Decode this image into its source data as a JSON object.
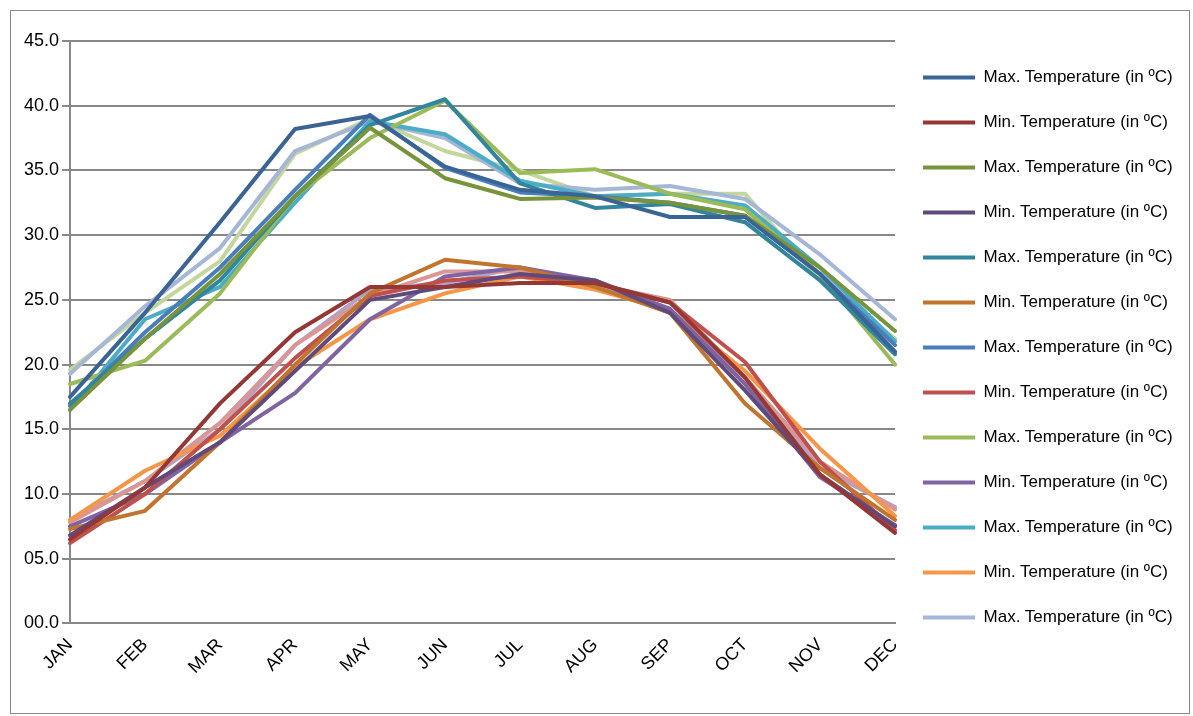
{
  "chart_data": {
    "type": "line",
    "categories": [
      "JAN",
      "FEB",
      "MAR",
      "APR",
      "MAY",
      "JUN",
      "JUL",
      "AUG",
      "SEP",
      "OCT",
      "NOV",
      "DEC"
    ],
    "ylim": [
      0,
      45
    ],
    "yticks": [
      {
        "value": 0,
        "label": "00.0"
      },
      {
        "value": 5,
        "label": "05.0"
      },
      {
        "value": 10,
        "label": "10.0"
      },
      {
        "value": 15,
        "label": "15.0"
      },
      {
        "value": 20,
        "label": "20.0"
      },
      {
        "value": 25,
        "label": "25.0"
      },
      {
        "value": 30,
        "label": "30.0"
      },
      {
        "value": 35,
        "label": "35.0"
      },
      {
        "value": 40,
        "label": "40.0"
      },
      {
        "value": 45,
        "label": "45.0"
      }
    ],
    "grid": "y",
    "legend": "right",
    "marker": "none",
    "line_style": "solid",
    "series": [
      {
        "name": "Max. Temperature (in ºC)",
        "color": "#3b6496",
        "values": [
          17.5,
          24,
          31,
          38.2,
          39.2,
          35.3,
          33.5,
          33,
          31.4,
          31.4,
          27,
          21
        ]
      },
      {
        "name": "Min. Temperature (in ºC)",
        "color": "#953735",
        "values": [
          6.5,
          10.5,
          17,
          22.5,
          26,
          26,
          26.3,
          26.3,
          24.8,
          19,
          11.5,
          7
        ]
      },
      {
        "name": "Max. Temperature (in ºC)",
        "color": "#77933c",
        "values": [
          16.5,
          22,
          27,
          33,
          38.3,
          34.4,
          32.8,
          32.9,
          32.5,
          31.5,
          27.5,
          22.6
        ]
      },
      {
        "name": "Min. Temperature (in ºC)",
        "color": "#604a7b",
        "values": [
          6.8,
          10.5,
          14,
          19.5,
          25,
          26,
          27,
          26.5,
          24,
          18,
          11.5,
          7.5
        ]
      },
      {
        "name": "Max. Temperature (in ºC)",
        "color": "#31859c",
        "values": [
          17,
          22,
          26.5,
          33,
          38.5,
          40.5,
          34,
          32.1,
          32.4,
          31,
          26.5,
          20.8
        ]
      },
      {
        "name": "Min. Temperature (in ºC)",
        "color": "#c0742e",
        "values": [
          7.3,
          8.7,
          14,
          20,
          25.5,
          28.1,
          27.5,
          26,
          24,
          17,
          12,
          8
        ]
      },
      {
        "name": "Max. Temperature (in ºC)",
        "color": "#4a7ebb",
        "values": [
          16.8,
          22.5,
          27.5,
          33.5,
          39.3,
          35.2,
          33.3,
          33,
          32.5,
          31.5,
          27,
          21.5
        ]
      },
      {
        "name": "Min. Temperature (in ºC)",
        "color": "#c0504d",
        "values": [
          6.2,
          10,
          15,
          20.5,
          25.3,
          26.5,
          26.8,
          26.3,
          24.8,
          20.2,
          12.5,
          7.2
        ]
      },
      {
        "name": "Max. Temperature (in ºC)",
        "color": "#9bbb59",
        "values": [
          18.5,
          20.3,
          25.5,
          33,
          37.5,
          40.4,
          34.8,
          35.1,
          33.2,
          32,
          27,
          20
        ]
      },
      {
        "name": "Min. Temperature (in ºC)",
        "color": "#8064a2",
        "values": [
          7.5,
          10,
          14,
          17.8,
          23.5,
          26.8,
          27.5,
          26.5,
          24.3,
          18.5,
          11.3,
          7.6
        ]
      },
      {
        "name": "Max. Temperature (in ºC)",
        "color": "#4bacc6",
        "values": [
          16.5,
          23.5,
          26,
          32.5,
          38.8,
          37.8,
          34.2,
          33,
          33.2,
          32.3,
          27.5,
          21.8
        ]
      },
      {
        "name": "Min. Temperature (in ºC)",
        "color": "#f79646",
        "values": [
          8,
          11.8,
          14.5,
          19.8,
          23.5,
          25.5,
          26.8,
          25.8,
          24.2,
          19.5,
          13.5,
          8.3
        ]
      },
      {
        "name": "Max. Temperature (in ºC)",
        "color": "#a5b6d7",
        "values": [
          19.3,
          24.5,
          29,
          36.5,
          38.8,
          37.5,
          34,
          33.5,
          33.8,
          32.8,
          28.5,
          23.5
        ]
      },
      {
        "color": "#d99694",
        "values": [
          7.8,
          11,
          15.5,
          21.5,
          25.3,
          27.2,
          27.2,
          26.2,
          25,
          19,
          12.5,
          8.8
        ]
      },
      {
        "color": "#c3d69b",
        "values": [
          19.6,
          24,
          28,
          36.3,
          39,
          36.5,
          35,
          33,
          33.2,
          33.2,
          26.5,
          22
        ]
      },
      {
        "color": "#b3a2c7",
        "values": [
          8,
          11,
          15,
          21.5,
          25.8,
          26.3,
          27.5,
          26.3,
          24,
          19,
          12,
          9
        ]
      }
    ]
  }
}
